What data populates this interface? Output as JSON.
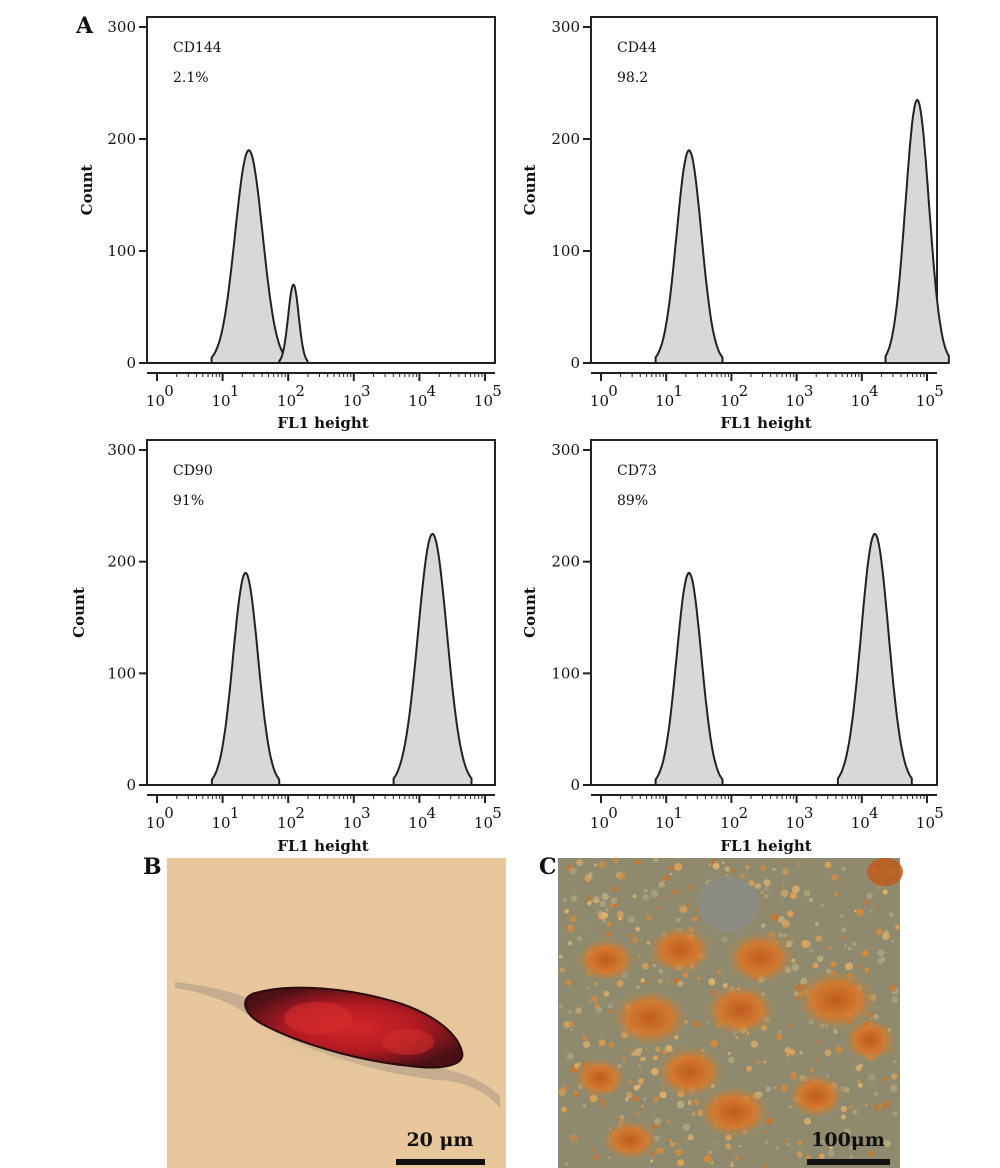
{
  "panels": {
    "a": "A",
    "b": "B",
    "c": "C"
  },
  "colors": {
    "fill": "#d8d8d8",
    "stroke": "#222222"
  },
  "chart_data": [
    {
      "type": "area",
      "marker": "CD144",
      "value_label": "2.1%",
      "xlabel": "FL1 height",
      "ylabel": "Count",
      "ylim": [
        0,
        300
      ],
      "yticks": [
        0,
        100,
        200,
        300
      ],
      "x_scale": "log",
      "xlim_exp": [
        0,
        5
      ],
      "xtick_bases": [
        "10",
        "10",
        "10",
        "10",
        "10",
        "10"
      ],
      "xtick_exps": [
        "0",
        "1",
        "2",
        "3",
        "4",
        "5"
      ],
      "peaks": [
        {
          "center_exp": 1.4,
          "sigma_exp": 0.21,
          "height": 190
        },
        {
          "center_exp": 2.08,
          "sigma_exp": 0.08,
          "height": 70
        }
      ]
    },
    {
      "type": "area",
      "marker": "CD44",
      "value_label": "98.2",
      "xlabel": "FL1 height",
      "ylabel": "Count",
      "ylim": [
        0,
        300
      ],
      "yticks": [
        0,
        100,
        200,
        300
      ],
      "x_scale": "log",
      "xlim_exp": [
        0,
        5
      ],
      "xtick_bases": [
        "10",
        "10",
        "10",
        "10",
        "10",
        "10"
      ],
      "xtick_exps": [
        "0",
        "1",
        "2",
        "3",
        "4",
        "5"
      ],
      "peaks": [
        {
          "center_exp": 1.35,
          "sigma_exp": 0.19,
          "height": 190
        },
        {
          "center_exp": 4.85,
          "sigma_exp": 0.18,
          "height": 235
        }
      ]
    },
    {
      "type": "area",
      "marker": "CD90",
      "value_label": "91%",
      "xlabel": "FL1 height",
      "ylabel": "Count",
      "ylim": [
        0,
        300
      ],
      "yticks": [
        0,
        100,
        200,
        300
      ],
      "x_scale": "log",
      "xlim_exp": [
        0,
        5
      ],
      "xtick_bases": [
        "10",
        "10",
        "10",
        "10",
        "10",
        "10"
      ],
      "xtick_exps": [
        "0",
        "1",
        "2",
        "3",
        "4",
        "5"
      ],
      "peaks": [
        {
          "center_exp": 1.35,
          "sigma_exp": 0.19,
          "height": 190
        },
        {
          "center_exp": 4.2,
          "sigma_exp": 0.22,
          "height": 225
        }
      ]
    },
    {
      "type": "area",
      "marker": "CD73",
      "value_label": "89%",
      "xlabel": "FL1 height",
      "ylabel": "Count",
      "ylim": [
        0,
        300
      ],
      "yticks": [
        0,
        100,
        200,
        300
      ],
      "x_scale": "log",
      "xlim_exp": [
        0,
        5
      ],
      "xtick_bases": [
        "10",
        "10",
        "10",
        "10",
        "10",
        "10"
      ],
      "xtick_exps": [
        "0",
        "1",
        "2",
        "3",
        "4",
        "5"
      ],
      "peaks": [
        {
          "center_exp": 1.35,
          "sigma_exp": 0.19,
          "height": 190
        },
        {
          "center_exp": 4.2,
          "sigma_exp": 0.21,
          "height": 225
        }
      ]
    }
  ],
  "micrographs": [
    {
      "scale_label": "20 μm"
    },
    {
      "scale_label": "100μm"
    }
  ]
}
